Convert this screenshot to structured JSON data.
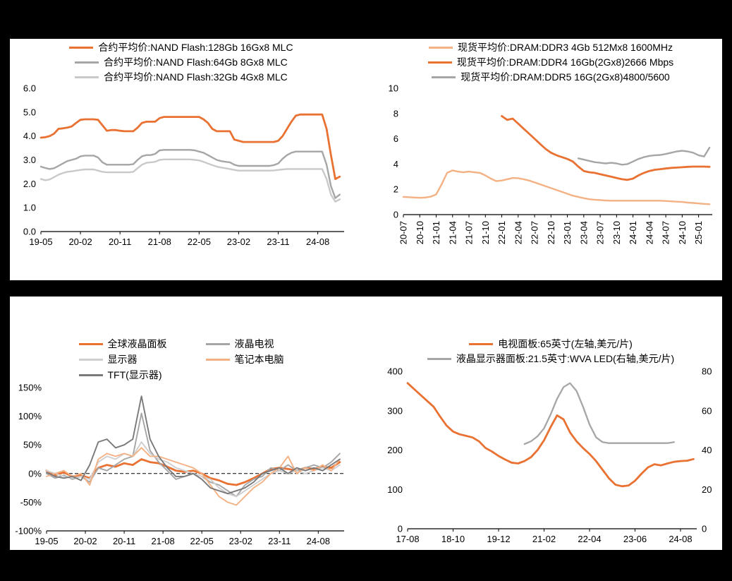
{
  "page": {
    "background_color": "#ffffff",
    "frame_color": "#000000",
    "accent_orange": "#E97132",
    "accent_peach": "#F4B183",
    "accent_gray": "#A6A6A6",
    "accent_light_gray": "#CFCFCF",
    "accent_dark_gray": "#7A7A7A"
  },
  "chart_data": {
    "nand": {
      "type": "line",
      "title": "",
      "x_unit": "months since 2019-05",
      "x_domain": [
        0,
        69
      ],
      "margins": {
        "l": 44,
        "r": 12,
        "t": 5,
        "b": 26
      },
      "y_left": {
        "min": 0,
        "max": 6,
        "tick_values": [
          6,
          5,
          4,
          3,
          2,
          1,
          0
        ],
        "tick_labels": [
          "6.0",
          "5.0",
          "4.0",
          "3.0",
          "2.0",
          "1.0",
          "0.0"
        ]
      },
      "x_ticks": {
        "rotate": false,
        "pos": [
          0,
          9,
          18,
          27,
          36,
          45,
          54,
          63
        ],
        "labels": [
          "19-05",
          "20-02",
          "20-11",
          "21-08",
          "22-05",
          "23-02",
          "23-11",
          "24-08"
        ]
      },
      "series": [
        {
          "key": "nand-128gb",
          "name": "合约平均价:NAND Flash:128Gb 16Gx8 MLC",
          "color": "#E97132",
          "width": 2.8,
          "x_start": 0,
          "x_step": 1,
          "values": [
            3.93,
            3.95,
            4.0,
            4.1,
            4.3,
            4.32,
            4.35,
            4.4,
            4.55,
            4.68,
            4.7,
            4.7,
            4.7,
            4.68,
            4.45,
            4.22,
            4.25,
            4.25,
            4.22,
            4.2,
            4.2,
            4.2,
            4.35,
            4.55,
            4.6,
            4.6,
            4.6,
            4.75,
            4.8,
            4.8,
            4.8,
            4.8,
            4.8,
            4.8,
            4.8,
            4.8,
            4.8,
            4.7,
            4.55,
            4.3,
            4.2,
            4.2,
            4.2,
            4.2,
            3.85,
            3.8,
            3.75,
            3.75,
            3.75,
            3.75,
            3.75,
            3.75,
            3.75,
            3.75,
            3.8,
            4.0,
            4.3,
            4.6,
            4.85,
            4.9,
            4.9,
            4.9,
            4.9,
            4.9,
            4.9,
            4.3,
            3.2,
            2.2,
            2.3
          ]
        },
        {
          "key": "nand-64gb",
          "name": "合约平均价:NAND Flash:64Gb 8Gx8 MLC",
          "color": "#A6A6A6",
          "width": 2.4,
          "x_start": 0,
          "x_step": 1,
          "values": [
            2.72,
            2.66,
            2.62,
            2.65,
            2.75,
            2.85,
            2.95,
            3.0,
            3.05,
            3.15,
            3.18,
            3.18,
            3.18,
            3.1,
            2.9,
            2.8,
            2.8,
            2.8,
            2.8,
            2.8,
            2.8,
            2.82,
            3.0,
            3.15,
            3.2,
            3.2,
            3.25,
            3.4,
            3.42,
            3.42,
            3.42,
            3.42,
            3.42,
            3.42,
            3.42,
            3.4,
            3.35,
            3.3,
            3.2,
            3.1,
            3.0,
            2.95,
            2.92,
            2.9,
            2.8,
            2.75,
            2.75,
            2.75,
            2.75,
            2.75,
            2.75,
            2.75,
            2.75,
            2.78,
            2.85,
            3.05,
            3.2,
            3.3,
            3.35,
            3.35,
            3.35,
            3.35,
            3.35,
            3.35,
            3.35,
            2.8,
            1.9,
            1.4,
            1.55
          ]
        },
        {
          "key": "nand-32gb",
          "name": "合约平均价:NAND Flash:32Gb 4Gx8 MLC",
          "color": "#C9C9C9",
          "width": 2.4,
          "x_start": 0,
          "x_step": 1,
          "values": [
            2.2,
            2.15,
            2.18,
            2.28,
            2.38,
            2.45,
            2.5,
            2.52,
            2.55,
            2.58,
            2.6,
            2.6,
            2.6,
            2.55,
            2.5,
            2.48,
            2.48,
            2.48,
            2.48,
            2.48,
            2.48,
            2.5,
            2.65,
            2.8,
            2.88,
            2.9,
            2.92,
            3.0,
            3.02,
            3.02,
            3.02,
            3.02,
            3.02,
            3.02,
            3.02,
            3.0,
            2.98,
            2.92,
            2.85,
            2.78,
            2.72,
            2.68,
            2.65,
            2.62,
            2.58,
            2.55,
            2.55,
            2.55,
            2.55,
            2.55,
            2.55,
            2.55,
            2.55,
            2.56,
            2.58,
            2.6,
            2.62,
            2.62,
            2.62,
            2.62,
            2.62,
            2.62,
            2.62,
            2.62,
            2.62,
            2.2,
            1.55,
            1.25,
            1.35
          ]
        }
      ]
    },
    "dram": {
      "type": "line",
      "title": "",
      "x_unit": "months since 2020-07",
      "x_domain": [
        0,
        56.5
      ],
      "margins": {
        "l": 34,
        "r": 14,
        "t": 5,
        "b": 50
      },
      "y_left": {
        "min": 0,
        "max": 10,
        "tick_values": [
          10,
          8,
          6,
          4,
          2,
          0
        ],
        "tick_labels": [
          "10",
          "8",
          "6",
          "4",
          "2",
          "0"
        ]
      },
      "x_ticks": {
        "rotate": true,
        "pos": [
          0,
          3,
          6,
          9,
          12,
          15,
          18,
          21,
          24,
          27,
          30,
          33,
          36,
          39,
          42,
          45,
          48,
          51,
          54
        ],
        "labels": [
          "20-07",
          "20-10",
          "21-01",
          "21-04",
          "21-07",
          "21-10",
          "22-01",
          "22-04",
          "22-07",
          "22-10",
          "23-01",
          "23-04",
          "23-07",
          "23-10",
          "24-01",
          "24-04",
          "24-07",
          "24-10",
          "25-01"
        ]
      },
      "series": [
        {
          "key": "ddr3",
          "name": "现货平均价:DRAM:DDR3 4Gb 512Mx8 1600MHz",
          "color": "#F4B183",
          "width": 2.4,
          "x_start": 0,
          "x_step": 1,
          "values": [
            1.4,
            1.38,
            1.35,
            1.33,
            1.35,
            1.42,
            1.6,
            2.4,
            3.3,
            3.5,
            3.4,
            3.35,
            3.4,
            3.35,
            3.3,
            3.1,
            2.85,
            2.65,
            2.7,
            2.8,
            2.9,
            2.88,
            2.8,
            2.7,
            2.55,
            2.4,
            2.25,
            2.1,
            1.95,
            1.8,
            1.65,
            1.5,
            1.4,
            1.3,
            1.22,
            1.18,
            1.15,
            1.12,
            1.1,
            1.1,
            1.1,
            1.1,
            1.1,
            1.1,
            1.1,
            1.1,
            1.1,
            1.1,
            1.08,
            1.05,
            1.02,
            1.0,
            0.95,
            0.92,
            0.88,
            0.85,
            0.82
          ]
        },
        {
          "key": "ddr4",
          "name": "现货平均价:DRAM:DDR4 16Gb(2Gx8)2666 Mbps",
          "color": "#E97132",
          "width": 2.8,
          "x_start": 18,
          "x_step": 1,
          "values": [
            7.8,
            7.5,
            7.6,
            7.2,
            6.8,
            6.4,
            6.0,
            5.6,
            5.2,
            4.9,
            4.7,
            4.55,
            4.4,
            4.2,
            3.8,
            3.45,
            3.35,
            3.3,
            3.2,
            3.1,
            3.0,
            2.9,
            2.8,
            2.75,
            2.85,
            3.1,
            3.3,
            3.45,
            3.55,
            3.6,
            3.65,
            3.7,
            3.72,
            3.75,
            3.78,
            3.8,
            3.8,
            3.8,
            3.78
          ]
        },
        {
          "key": "ddr5",
          "name": "现货平均价:DRAM:DDR5 16G(2Gx8)4800/5600",
          "color": "#A6A6A6",
          "width": 2.4,
          "x_start": 32,
          "x_step": 1,
          "values": [
            4.45,
            4.35,
            4.25,
            4.15,
            4.1,
            4.05,
            4.1,
            4.05,
            3.95,
            4.0,
            4.2,
            4.4,
            4.55,
            4.65,
            4.7,
            4.72,
            4.8,
            4.9,
            5.0,
            5.05,
            5.0,
            4.9,
            4.7,
            4.6,
            5.3
          ]
        }
      ]
    },
    "yoy": {
      "type": "line",
      "title": "",
      "x_unit": "months since 2019-05",
      "x_domain": [
        0,
        69
      ],
      "zero_line": true,
      "margins": {
        "l": 52,
        "r": 12,
        "t": 7,
        "b": 26
      },
      "y_left": {
        "min": -100,
        "max": 150,
        "tick_values": [
          150,
          100,
          50,
          0,
          -50,
          -100
        ],
        "tick_labels": [
          "150%",
          "100%",
          "50%",
          "0%",
          "-50%",
          "-100%"
        ]
      },
      "x_ticks": {
        "rotate": false,
        "pos": [
          0,
          9,
          18,
          27,
          36,
          45,
          54,
          63
        ],
        "labels": [
          "19-05",
          "20-02",
          "20-11",
          "21-08",
          "22-05",
          "23-02",
          "23-11",
          "24-08"
        ]
      },
      "series": [
        {
          "key": "global-lcd",
          "name": "全球液晶面板",
          "color": "#E97132",
          "width": 2.8,
          "x_start": 0,
          "x_step": 2,
          "values": [
            5,
            -3,
            2,
            -5,
            -3,
            -8,
            10,
            15,
            12,
            18,
            15,
            25,
            20,
            18,
            12,
            5,
            3,
            5,
            0,
            -8,
            -12,
            -18,
            -20,
            -15,
            -8,
            0,
            8,
            10,
            8,
            5,
            10,
            8,
            12,
            10,
            20
          ]
        },
        {
          "key": "lcd-tv",
          "name": "液晶电视",
          "color": "#A6A6A6",
          "width": 1.9,
          "x_start": 0,
          "x_step": 2,
          "values": [
            0,
            -8,
            -3,
            -10,
            -5,
            -15,
            10,
            5,
            15,
            25,
            30,
            105,
            40,
            20,
            5,
            -10,
            -5,
            0,
            -5,
            -15,
            -20,
            -30,
            -40,
            -20,
            -10,
            -5,
            10,
            5,
            15,
            5,
            10,
            15,
            10,
            20,
            35
          ]
        },
        {
          "key": "monitor",
          "name": "显示器",
          "color": "#CFCFCF",
          "width": 1.9,
          "x_start": 0,
          "x_step": 2,
          "values": [
            5,
            0,
            -5,
            -8,
            -5,
            -10,
            20,
            30,
            25,
            35,
            30,
            55,
            35,
            25,
            20,
            10,
            5,
            0,
            -5,
            -10,
            -25,
            -35,
            -40,
            -30,
            -20,
            -10,
            0,
            5,
            0,
            5,
            0,
            5,
            10,
            5,
            15
          ]
        },
        {
          "key": "notebook",
          "name": "笔记本电脑",
          "color": "#F4B183",
          "width": 1.9,
          "x_start": 0,
          "x_step": 2,
          "values": [
            -5,
            0,
            5,
            -5,
            0,
            -20,
            25,
            35,
            30,
            35,
            30,
            45,
            30,
            30,
            25,
            20,
            15,
            10,
            0,
            -20,
            -40,
            -50,
            -55,
            -40,
            -25,
            -15,
            0,
            10,
            30,
            0,
            10,
            5,
            15,
            5,
            25
          ]
        },
        {
          "key": "tft-monitor",
          "name": "TFT(显示器)",
          "color": "#7A7A7A",
          "width": 1.9,
          "x_start": 0,
          "x_step": 2,
          "values": [
            2,
            -5,
            -8,
            -5,
            -12,
            15,
            55,
            60,
            45,
            50,
            60,
            135,
            60,
            30,
            10,
            -5,
            -5,
            0,
            -10,
            -25,
            -30,
            -35,
            -30,
            -25,
            -15,
            0,
            5,
            10,
            0,
            10,
            5,
            10,
            5,
            15,
            25
          ]
        }
      ]
    },
    "tvpanel": {
      "type": "line",
      "title": "",
      "x_unit": "months since 2017-08",
      "x_domain": [
        0,
        89
      ],
      "margins": {
        "l": 40,
        "r": 36,
        "t": 7,
        "b": 26
      },
      "y_left": {
        "min": 0,
        "max": 400,
        "tick_values": [
          400,
          300,
          200,
          100,
          0
        ],
        "tick_labels": [
          "400",
          "300",
          "200",
          "100",
          "0"
        ]
      },
      "y_right": {
        "min": 0,
        "max": 80,
        "tick_values": [
          80,
          60,
          40,
          20,
          0
        ],
        "tick_labels": [
          "80",
          "60",
          "40",
          "20",
          "0"
        ]
      },
      "x_ticks": {
        "rotate": false,
        "pos": [
          0,
          14,
          28,
          42,
          56,
          70,
          84
        ],
        "labels": [
          "17-08",
          "18-10",
          "19-12",
          "21-02",
          "22-04",
          "23-06",
          "24-08"
        ]
      },
      "series": [
        {
          "key": "tv-65inch",
          "name": "电视面板:65英寸(左轴,美元/片)",
          "color": "#E97132",
          "width": 2.8,
          "axis": "left",
          "x_start": 0,
          "x_step": 2,
          "values": [
            370,
            355,
            340,
            325,
            310,
            285,
            262,
            247,
            240,
            236,
            232,
            222,
            205,
            196,
            185,
            176,
            168,
            166,
            172,
            182,
            200,
            225,
            258,
            288,
            278,
            245,
            222,
            205,
            190,
            172,
            150,
            128,
            112,
            108,
            110,
            122,
            140,
            156,
            164,
            161,
            166,
            170,
            172,
            173,
            177
          ]
        },
        {
          "key": "monitor-21_5inch",
          "name": "液晶显示器面板:21.5英寸:WVA LED(右轴,美元/片)",
          "color": "#A6A6A6",
          "width": 2.3,
          "axis": "right",
          "x_start": 36,
          "x_step": 2,
          "values": [
            43,
            44.5,
            47,
            51,
            58,
            66,
            72,
            74,
            70,
            62,
            53,
            46.5,
            44,
            43.5,
            43.5,
            43.5,
            43.5,
            43.5,
            43.5,
            43.5,
            43.5,
            43.5,
            43.5,
            44
          ]
        }
      ]
    }
  }
}
